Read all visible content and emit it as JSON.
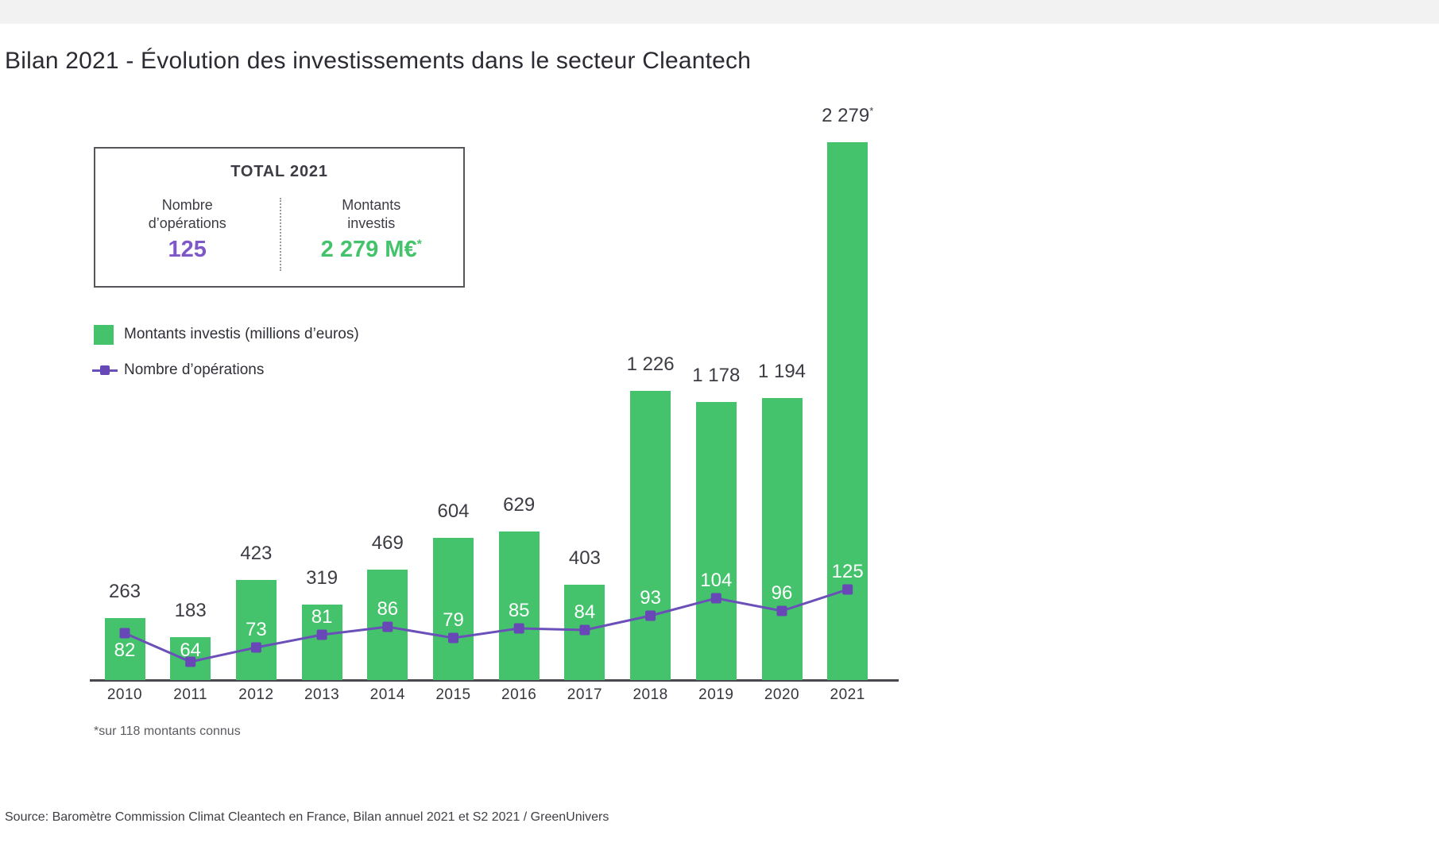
{
  "page": {
    "title": "Bilan 2021 - Évolution des investissements dans le secteur Cleantech",
    "footnote": "*sur 118 montants connus",
    "source": "Source: Baromètre Commission Climat Cleantech en France, Bilan annuel 2021 et S2 2021 / GreenUnivers"
  },
  "colors": {
    "bar_green": "#44c36c",
    "line_purple": "#6a50b8",
    "marker_purple": "#6847b6",
    "value_purple": "#7e57c9",
    "text_dark": "#2b2b33",
    "axis_gray": "#48484e"
  },
  "total_box": {
    "title": "TOTAL 2021",
    "operations": {
      "label_line1": "Nombre",
      "label_line2": "d’opérations",
      "value": "125"
    },
    "amounts": {
      "label_line1": "Montants",
      "label_line2": "investis",
      "value": "2 279 M€",
      "asterisk": "*"
    }
  },
  "legend": {
    "items": [
      {
        "swatch": "green-square",
        "label": "Montants investis (millions d’euros)"
      },
      {
        "swatch": "purple-line-square-marker",
        "label": "Nombre d’opérations"
      }
    ]
  },
  "chart_data": {
    "type": "bar+line combo",
    "title": "Bilan 2021 - Évolution des investissements dans le secteur Cleantech",
    "categories": [
      "2010",
      "2011",
      "2012",
      "2013",
      "2014",
      "2015",
      "2016",
      "2017",
      "2018",
      "2019",
      "2020",
      "2021"
    ],
    "series": [
      {
        "name": "Montants investis (millions d’euros)",
        "type": "bar",
        "color": "#44c36c",
        "values": [
          263,
          183,
          423,
          319,
          469,
          604,
          629,
          403,
          1226,
          1178,
          1194,
          2279
        ],
        "value_labels": [
          "263",
          "183",
          "423",
          "319",
          "469",
          "604",
          "629",
          "403",
          "1 226",
          "1 178",
          "1 194",
          "2 279"
        ],
        "star": "*",
        "star_label_index": 11
      },
      {
        "name": "Nombre d’opérations",
        "type": "line",
        "color": "#6a50b8",
        "marker": "square",
        "values": [
          82,
          64,
          73,
          81,
          86,
          79,
          85,
          84,
          93,
          104,
          96,
          125
        ]
      }
    ],
    "xlabel": "",
    "ylabel": "",
    "bar_axis_range": [
      0,
      2279
    ],
    "gridlines": false,
    "legend_position": "top-left",
    "value_labels_shown": true,
    "footnote": "*sur 118 montants connus"
  }
}
